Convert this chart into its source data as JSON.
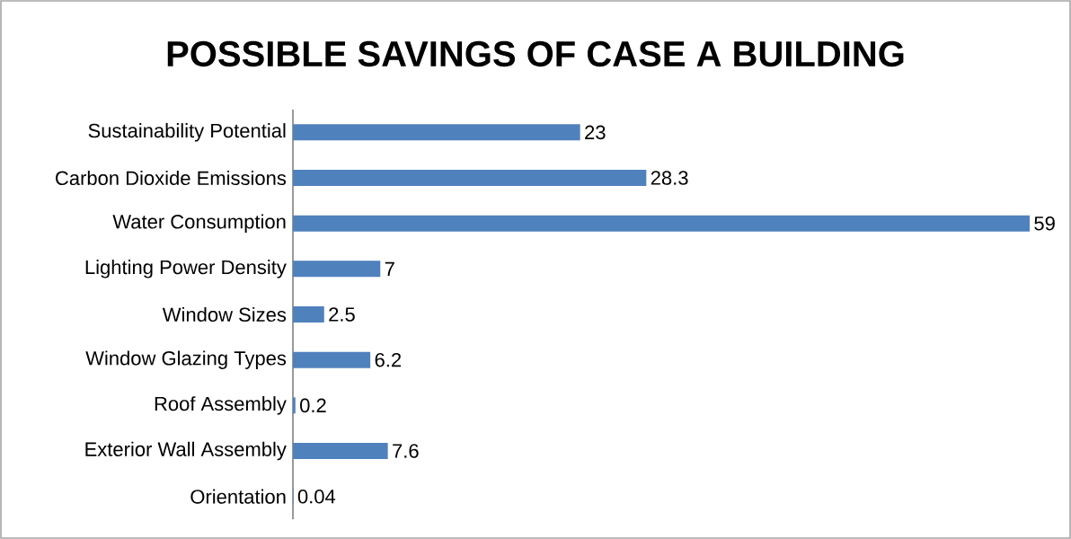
{
  "chart_data": {
    "type": "bar",
    "orientation": "horizontal",
    "title": "POSSIBLE SAVINGS OF CASE A BUILDING",
    "categories": [
      "Sustainability Potential",
      "Carbon Dioxide Emissions",
      "Water Consumption",
      "Lighting Power Density",
      "Window Sizes",
      "Window Glazing Types",
      "Roof Assembly",
      "Exterior Wall Assembly",
      "Orientation"
    ],
    "values": [
      23,
      28.3,
      59,
      7,
      2.5,
      6.2,
      0.2,
      7.6,
      0.04
    ],
    "color": "#4f81bd",
    "data_labels": true
  }
}
